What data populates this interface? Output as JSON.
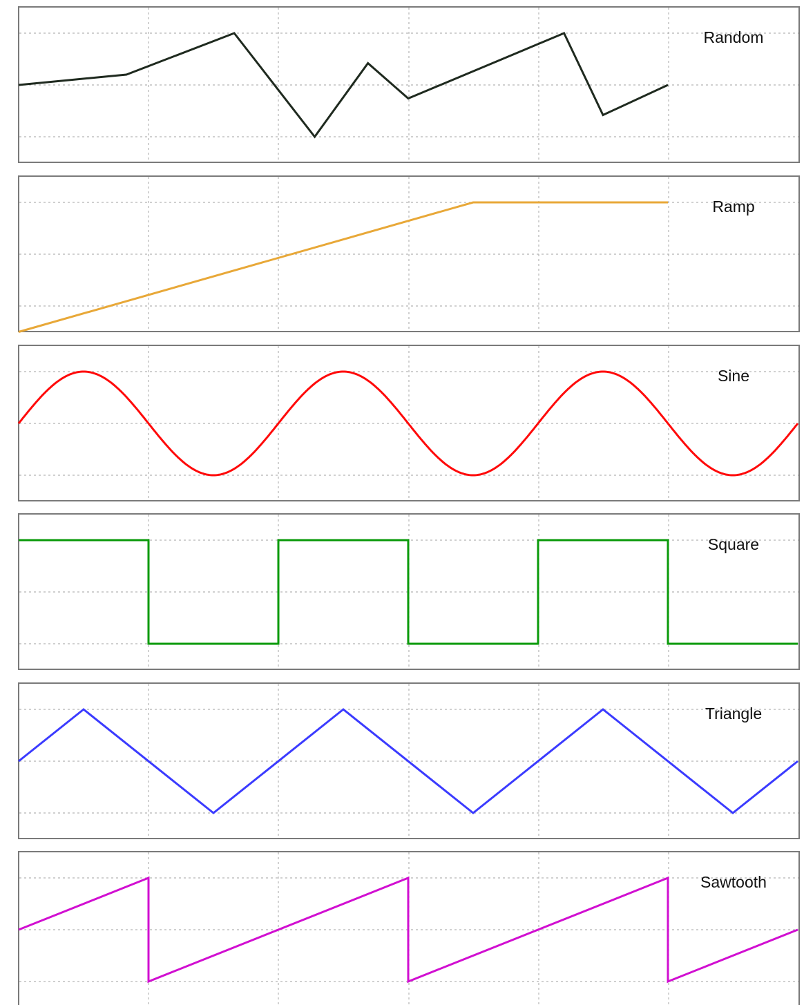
{
  "chart_data": [
    {
      "type": "line",
      "title": "Random",
      "color": "#1f2a1f",
      "x": [
        0,
        0.83,
        1.66,
        2.28,
        2.69,
        3.0,
        4.2,
        4.5,
        5.0
      ],
      "y": [
        0,
        0.2,
        1,
        -1,
        0.42,
        -0.26,
        1,
        -0.58,
        0
      ],
      "xlim": [
        0,
        6
      ],
      "ylim": [
        -1.5,
        1.5
      ],
      "grid": true
    },
    {
      "type": "line",
      "title": "Ramp",
      "color": "#e8a838",
      "x": [
        0,
        3.5,
        5.0
      ],
      "y": [
        -1.5,
        1,
        1
      ],
      "xlim": [
        0,
        6
      ],
      "ylim": [
        -1.5,
        1.5
      ],
      "grid": true
    },
    {
      "type": "line",
      "title": "Sine",
      "color": "#ff0a0a",
      "waveform": "sine",
      "amplitude": 1,
      "period": 2,
      "x_range": [
        0,
        6
      ],
      "xlim": [
        0,
        6
      ],
      "ylim": [
        -1.5,
        1.5
      ],
      "grid": true
    },
    {
      "type": "line",
      "title": "Square",
      "color": "#0a9a0a",
      "x": [
        0,
        1,
        1,
        2,
        2,
        3,
        3,
        4,
        4,
        5,
        5,
        6
      ],
      "y": [
        1,
        1,
        -1,
        -1,
        1,
        1,
        -1,
        -1,
        1,
        1,
        -1,
        -1
      ],
      "xlim": [
        0,
        6
      ],
      "ylim": [
        -1.5,
        1.5
      ],
      "grid": true
    },
    {
      "type": "line",
      "title": "Triangle",
      "color": "#3b3bff",
      "x": [
        0,
        0.5,
        1.5,
        2.5,
        3.5,
        4.5,
        5.5,
        6
      ],
      "y": [
        0,
        1,
        -1,
        1,
        -1,
        1,
        -1,
        0
      ],
      "xlim": [
        0,
        6
      ],
      "ylim": [
        -1.5,
        1.5
      ],
      "grid": true
    },
    {
      "type": "line",
      "title": "Sawtooth",
      "color": "#d10fd1",
      "x": [
        0,
        1,
        1,
        3,
        3,
        5,
        5,
        6
      ],
      "y": [
        0,
        1,
        -1,
        1,
        -1,
        1,
        -1,
        0
      ],
      "xlim": [
        0,
        6
      ],
      "ylim": [
        -1.5,
        1.5
      ],
      "grid": true
    }
  ]
}
